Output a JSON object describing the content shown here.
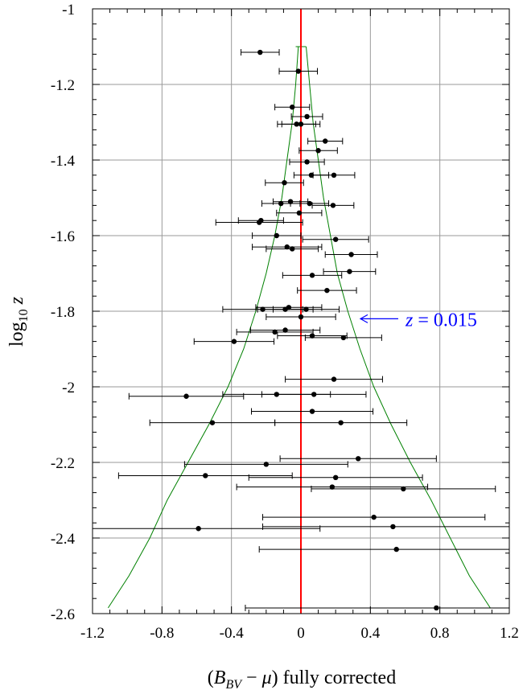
{
  "chart_data": {
    "type": "scatter",
    "xlabel": {
      "open": "(",
      "var": "B",
      "sub": "BV",
      "rest": " − ",
      "mu": "μ",
      "close": ") fully corrected"
    },
    "ylabel": {
      "prefix": "log",
      "sub": "10",
      "var": "z"
    },
    "xlim": [
      -1.2,
      1.2
    ],
    "ylim": [
      -2.6,
      -1.0
    ],
    "xticks": [
      -1.2,
      -0.8,
      -0.4,
      0,
      0.4,
      0.8,
      1.2
    ],
    "xtick_labels": [
      "-1.2",
      "-0.8",
      "-0.4",
      "0",
      "0.4",
      "0.8",
      "1.2"
    ],
    "yticks": [
      -1.0,
      -1.2,
      -1.4,
      -1.6,
      -1.8,
      -2.0,
      -2.2,
      -2.4,
      -2.6
    ],
    "ytick_labels": [
      "-1",
      "-1.2",
      "-1.4",
      "-1.6",
      "-1.8",
      "-2",
      "-2.2",
      "-2.4",
      "-2.6"
    ],
    "grid": true,
    "colors": {
      "points": "#000000",
      "zero_line": "#ff0000",
      "envelope": "#008000",
      "annotation": "#0000ff",
      "grid": "#999999"
    },
    "annotation": {
      "var": "z",
      "text": " = 0.015",
      "target_y": -1.82
    },
    "points": [
      {
        "x": -0.235,
        "y": -1.115,
        "xerr": 0.11
      },
      {
        "x": -0.015,
        "y": -1.165,
        "xerr": 0.11
      },
      {
        "x": -0.05,
        "y": -1.26,
        "xerr": 0.1
      },
      {
        "x": 0.035,
        "y": -1.285,
        "xerr": 0.09
      },
      {
        "x": -0.025,
        "y": -1.305,
        "xerr": 0.11
      },
      {
        "x": 0.0,
        "y": -1.305,
        "xerr": 0.11
      },
      {
        "x": 0.14,
        "y": -1.35,
        "xerr": 0.1
      },
      {
        "x": 0.1,
        "y": -1.375,
        "xerr": 0.11
      },
      {
        "x": 0.035,
        "y": -1.405,
        "xerr": 0.1
      },
      {
        "x": 0.06,
        "y": -1.44,
        "xerr": 0.1
      },
      {
        "x": 0.19,
        "y": -1.44,
        "xerr": 0.12
      },
      {
        "x": -0.095,
        "y": -1.46,
        "xerr": 0.11
      },
      {
        "x": -0.115,
        "y": -1.515,
        "xerr": 0.11
      },
      {
        "x": -0.06,
        "y": -1.51,
        "xerr": 0.1
      },
      {
        "x": 0.05,
        "y": -1.515,
        "xerr": 0.11
      },
      {
        "x": 0.185,
        "y": -1.52,
        "xerr": 0.12
      },
      {
        "x": -0.01,
        "y": -1.54,
        "xerr": 0.13
      },
      {
        "x": -0.23,
        "y": -1.56,
        "xerr": 0.13
      },
      {
        "x": -0.24,
        "y": -1.565,
        "xerr": 0.25
      },
      {
        "x": -0.14,
        "y": -1.6,
        "xerr": 0.14
      },
      {
        "x": 0.2,
        "y": -1.61,
        "xerr": 0.19
      },
      {
        "x": -0.08,
        "y": -1.63,
        "xerr": 0.2
      },
      {
        "x": -0.05,
        "y": -1.635,
        "xerr": 0.15
      },
      {
        "x": 0.29,
        "y": -1.65,
        "xerr": 0.15
      },
      {
        "x": 0.28,
        "y": -1.695,
        "xerr": 0.15
      },
      {
        "x": 0.065,
        "y": -1.705,
        "xerr": 0.17
      },
      {
        "x": 0.15,
        "y": -1.745,
        "xerr": 0.17
      },
      {
        "x": -0.07,
        "y": -1.79,
        "xerr": 0.19
      },
      {
        "x": -0.22,
        "y": -1.795,
        "xerr": 0.23
      },
      {
        "x": -0.09,
        "y": -1.795,
        "xerr": 0.16
      },
      {
        "x": 0.03,
        "y": -1.795,
        "xerr": 0.19
      },
      {
        "x": 0.0,
        "y": -1.815,
        "xerr": 0.2
      },
      {
        "x": -0.15,
        "y": -1.855,
        "xerr": 0.22
      },
      {
        "x": -0.09,
        "y": -1.85,
        "xerr": 0.2
      },
      {
        "x": 0.065,
        "y": -1.865,
        "xerr": 0.2
      },
      {
        "x": 0.245,
        "y": -1.87,
        "xerr": 0.22
      },
      {
        "x": -0.385,
        "y": -1.88,
        "xerr": 0.23
      },
      {
        "x": 0.19,
        "y": -1.98,
        "xerr": 0.28
      },
      {
        "x": -0.66,
        "y": -2.025,
        "xerr": 0.33
      },
      {
        "x": -0.14,
        "y": -2.02,
        "xerr": 0.31
      },
      {
        "x": 0.075,
        "y": -2.02,
        "xerr": 0.3
      },
      {
        "x": 0.065,
        "y": -2.065,
        "xerr": 0.35
      },
      {
        "x": -0.51,
        "y": -2.095,
        "xerr": 0.36
      },
      {
        "x": 0.23,
        "y": -2.095,
        "xerr": 0.38
      },
      {
        "x": 0.33,
        "y": -2.19,
        "xerr": 0.45
      },
      {
        "x": -0.2,
        "y": -2.205,
        "xerr": 0.47
      },
      {
        "x": -0.55,
        "y": -2.235,
        "xerr": 0.5
      },
      {
        "x": 0.2,
        "y": -2.24,
        "xerr": 0.5
      },
      {
        "x": 0.18,
        "y": -2.265,
        "xerr": 0.55
      },
      {
        "x": 0.59,
        "y": -2.27,
        "xerr": 0.53
      },
      {
        "x": 0.42,
        "y": -2.345,
        "xerr": 0.64
      },
      {
        "x": 0.53,
        "y": -2.37,
        "xerr": 0.75
      },
      {
        "x": -0.59,
        "y": -2.375,
        "xerr": 0.7
      },
      {
        "x": 0.55,
        "y": -2.43,
        "xerr": 0.79
      },
      {
        "x": 0.78,
        "y": -2.585,
        "xerr": 1.1
      }
    ],
    "envelope": {
      "top_y": -1.1,
      "top_half_width": 0.03,
      "bottom_y": -2.585,
      "left": [
        [
          -0.015,
          -1.1
        ],
        [
          -0.03,
          -1.2
        ],
        [
          -0.05,
          -1.3
        ],
        [
          -0.08,
          -1.4
        ],
        [
          -0.11,
          -1.5
        ],
        [
          -0.15,
          -1.6
        ],
        [
          -0.2,
          -1.7
        ],
        [
          -0.26,
          -1.8
        ],
        [
          -0.33,
          -1.9
        ],
        [
          -0.42,
          -2.0
        ],
        [
          -0.53,
          -2.1
        ],
        [
          -0.65,
          -2.2
        ],
        [
          -0.77,
          -2.3
        ],
        [
          -0.87,
          -2.4
        ],
        [
          -0.99,
          -2.5
        ],
        [
          -1.11,
          -2.585
        ]
      ],
      "right": [
        [
          0.03,
          -1.1
        ],
        [
          0.05,
          -1.2
        ],
        [
          0.07,
          -1.3
        ],
        [
          0.1,
          -1.4
        ],
        [
          0.13,
          -1.5
        ],
        [
          0.17,
          -1.6
        ],
        [
          0.21,
          -1.7
        ],
        [
          0.27,
          -1.8
        ],
        [
          0.34,
          -1.9
        ],
        [
          0.42,
          -2.0
        ],
        [
          0.52,
          -2.1
        ],
        [
          0.63,
          -2.2
        ],
        [
          0.75,
          -2.3
        ],
        [
          0.86,
          -2.4
        ],
        [
          0.97,
          -2.5
        ],
        [
          1.09,
          -2.585
        ]
      ]
    }
  }
}
